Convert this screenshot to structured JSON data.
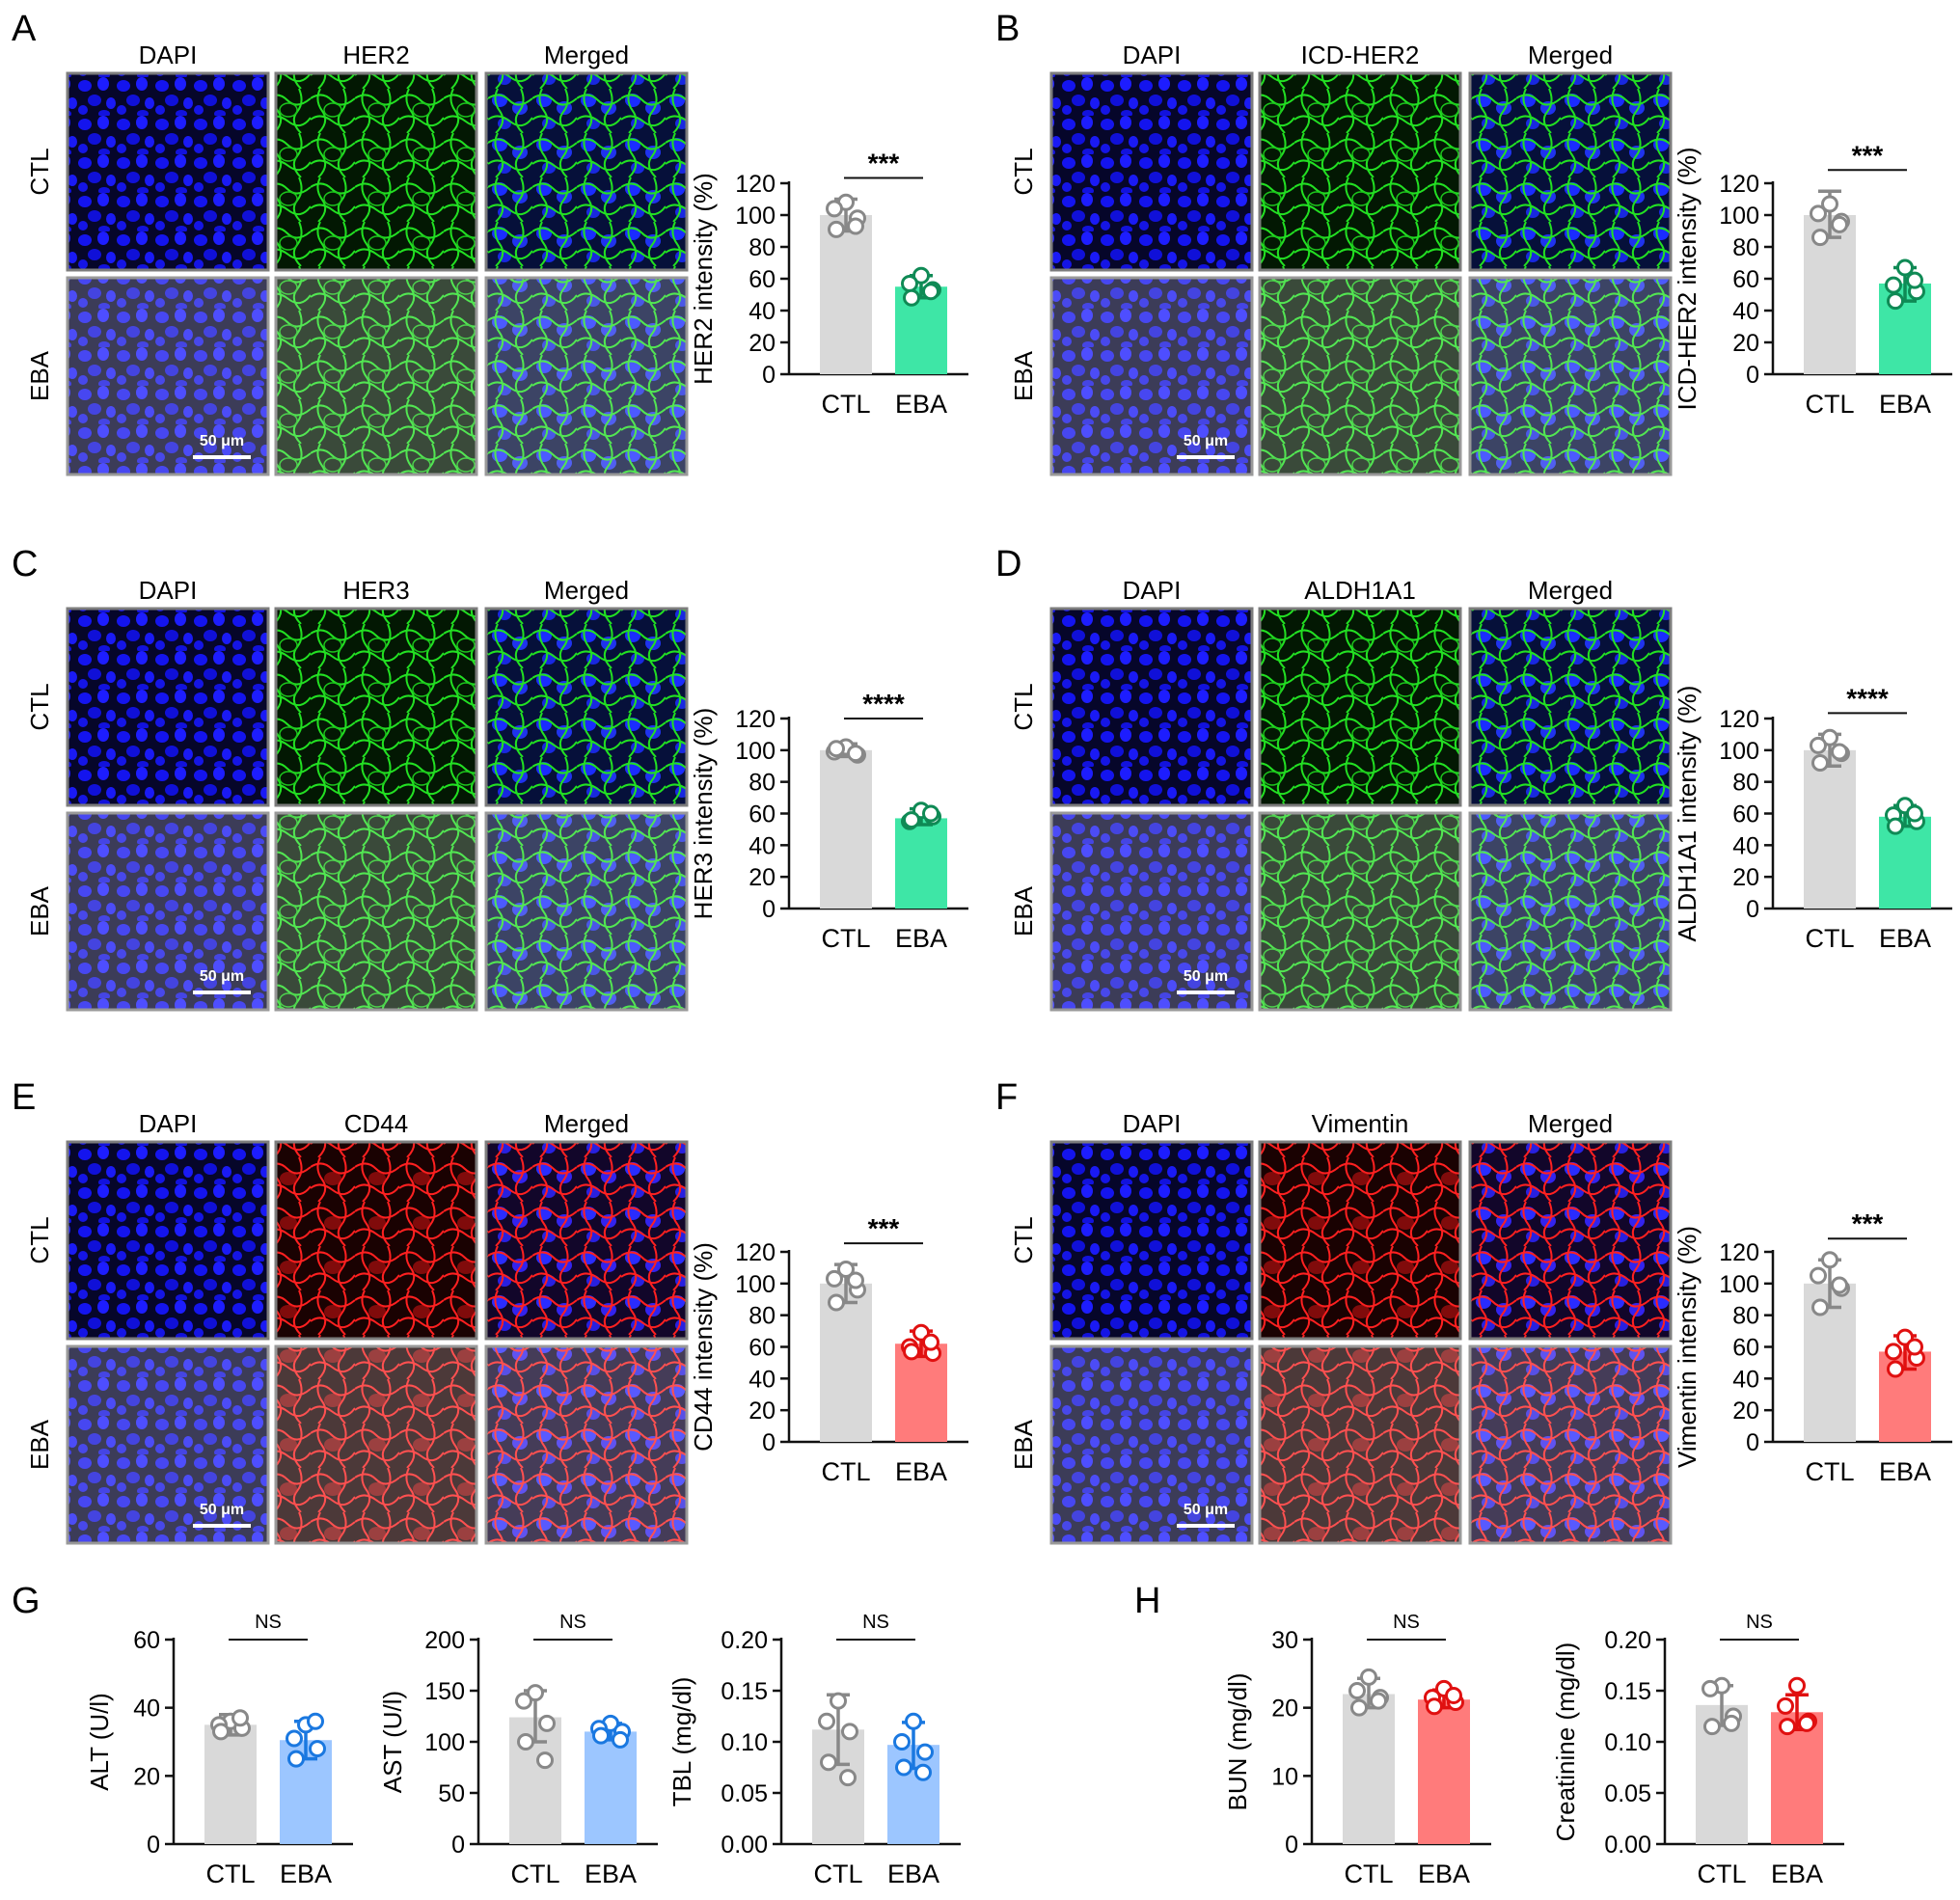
{
  "colors": {
    "ctl_bar": "#d9d9d9",
    "ctl_point": "#888888",
    "eba_green": "#3ee6a6",
    "eba_green_point": "#0f8a55",
    "eba_red": "#ff7b7b",
    "eba_red_point": "#e01010",
    "eba_blue": "#9cc6ff",
    "eba_blue_point": "#1a78e0",
    "dapi": "#1616ff",
    "marker_green": "#1fe61f",
    "marker_red": "#ff1e1e"
  },
  "common": {
    "categories": [
      "CTL",
      "EBA"
    ],
    "row_labels": [
      "CTL",
      "EBA"
    ],
    "scale_bar_label": "50 μm"
  },
  "panels": [
    {
      "letter": "A",
      "col_titles": [
        "DAPI",
        "HER2",
        "Merged"
      ],
      "marker_color": "green",
      "scale_bar": true
    },
    {
      "letter": "B",
      "col_titles": [
        "DAPI",
        "ICD-HER2",
        "Merged"
      ],
      "marker_color": "green",
      "scale_bar": true
    },
    {
      "letter": "C",
      "col_titles": [
        "DAPI",
        "HER3",
        "Merged"
      ],
      "marker_color": "green",
      "scale_bar": true
    },
    {
      "letter": "D",
      "col_titles": [
        "DAPI",
        "ALDH1A1",
        "Merged"
      ],
      "marker_color": "green",
      "scale_bar": true
    },
    {
      "letter": "E",
      "col_titles": [
        "DAPI",
        "CD44",
        "Merged"
      ],
      "marker_color": "red",
      "scale_bar": true
    },
    {
      "letter": "F",
      "col_titles": [
        "DAPI",
        "Vimentin",
        "Merged"
      ],
      "marker_color": "red",
      "scale_bar": true
    }
  ],
  "bottom_letters": {
    "g": "G",
    "h": "H"
  },
  "chart_data": [
    {
      "type": "bar",
      "ylabel": "HER2 intensity (%)",
      "ylim": [
        0,
        120
      ],
      "yticks": [
        "0",
        "20",
        "40",
        "60",
        "80",
        "100",
        "120"
      ],
      "categories": [
        "CTL",
        "EBA"
      ],
      "values": [
        100,
        55
      ],
      "error": [
        [
          90,
          110
        ],
        [
          48,
          62
        ]
      ],
      "points": [
        [
          108,
          104,
          98,
          91,
          93
        ],
        [
          62,
          57,
          53,
          48,
          52
        ]
      ],
      "significance": "***",
      "eba_color": "green"
    },
    {
      "type": "bar",
      "ylabel": "ICD-HER2 intensity (%)",
      "ylim": [
        0,
        120
      ],
      "yticks": [
        "0",
        "20",
        "40",
        "60",
        "80",
        "100",
        "120"
      ],
      "categories": [
        "CTL",
        "EBA"
      ],
      "values": [
        100,
        57
      ],
      "error": [
        [
          86,
          115
        ],
        [
          46,
          67
        ]
      ],
      "points": [
        [
          107,
          101,
          96,
          86,
          94
        ],
        [
          67,
          56,
          52,
          46,
          59
        ]
      ],
      "significance": "***",
      "eba_color": "green"
    },
    {
      "type": "bar",
      "ylabel": "HER3 intensity (%)",
      "ylim": [
        0,
        120
      ],
      "yticks": [
        "0",
        "20",
        "40",
        "60",
        "80",
        "100",
        "120"
      ],
      "categories": [
        "CTL",
        "EBA"
      ],
      "values": [
        100,
        57
      ],
      "error": [
        [
          96,
          104
        ],
        [
          53,
          63
        ]
      ],
      "points": [
        [
          102,
          99,
          97,
          101,
          98
        ],
        [
          62,
          55,
          58,
          56,
          60
        ]
      ],
      "significance": "****",
      "eba_color": "green"
    },
    {
      "type": "bar",
      "ylabel": "ALDH1A1 intensity (%)",
      "ylim": [
        0,
        120
      ],
      "yticks": [
        "0",
        "20",
        "40",
        "60",
        "80",
        "100",
        "120"
      ],
      "categories": [
        "CTL",
        "EBA"
      ],
      "values": [
        100,
        58
      ],
      "error": [
        [
          90,
          110
        ],
        [
          52,
          65
        ]
      ],
      "points": [
        [
          108,
          103,
          98,
          92,
          99
        ],
        [
          65,
          59,
          55,
          52,
          60
        ]
      ],
      "significance": "****",
      "eba_color": "green"
    },
    {
      "type": "bar",
      "ylabel": "CD44 intensity (%)",
      "ylim": [
        0,
        120
      ],
      "yticks": [
        "0",
        "20",
        "40",
        "60",
        "80",
        "100",
        "120"
      ],
      "categories": [
        "CTL",
        "EBA"
      ],
      "values": [
        100,
        62
      ],
      "error": [
        [
          88,
          112
        ],
        [
          54,
          70
        ]
      ],
      "points": [
        [
          109,
          103,
          96,
          88,
          102
        ],
        [
          69,
          60,
          56,
          57,
          63
        ]
      ],
      "significance": "***",
      "eba_color": "red"
    },
    {
      "type": "bar",
      "ylabel": "Vimentin intensity (%)",
      "ylim": [
        0,
        120
      ],
      "yticks": [
        "0",
        "20",
        "40",
        "60",
        "80",
        "100",
        "120"
      ],
      "categories": [
        "CTL",
        "EBA"
      ],
      "values": [
        100,
        57
      ],
      "error": [
        [
          85,
          115
        ],
        [
          46,
          67
        ]
      ],
      "points": [
        [
          115,
          105,
          97,
          85,
          99
        ],
        [
          66,
          57,
          53,
          46,
          60
        ]
      ],
      "significance": "***",
      "eba_color": "red"
    },
    {
      "type": "bar",
      "ylabel": "ALT (U/l)",
      "ylim": [
        0,
        60
      ],
      "yticks": [
        "0",
        "20",
        "40",
        "60"
      ],
      "categories": [
        "CTL",
        "EBA"
      ],
      "values": [
        35,
        30.5
      ],
      "error": [
        [
          32,
          38
        ],
        [
          25,
          36
        ]
      ],
      "points": [
        [
          36,
          35,
          34,
          33,
          37
        ],
        [
          35,
          31,
          28,
          25,
          36
        ]
      ],
      "significance": "NS",
      "eba_color": "blue"
    },
    {
      "type": "bar",
      "ylabel": "AST (U/l)",
      "ylim": [
        0,
        200
      ],
      "yticks": [
        "0",
        "50",
        "100",
        "150",
        "200"
      ],
      "categories": [
        "CTL",
        "EBA"
      ],
      "values": [
        124,
        110
      ],
      "error": [
        [
          100,
          150
        ],
        [
          102,
          118
        ]
      ],
      "points": [
        [
          148,
          140,
          118,
          100,
          82
        ],
        [
          118,
          113,
          110,
          106,
          102
        ]
      ],
      "significance": "NS",
      "eba_color": "blue"
    },
    {
      "type": "bar",
      "ylabel": "TBL (mg/dl)",
      "ylim": [
        0,
        0.2
      ],
      "yticks": [
        "0.00",
        "0.05",
        "0.10",
        "0.15",
        "0.20"
      ],
      "categories": [
        "CTL",
        "EBA"
      ],
      "values": [
        0.112,
        0.097
      ],
      "error": [
        [
          0.078,
          0.146
        ],
        [
          0.074,
          0.119
        ]
      ],
      "points": [
        [
          0.14,
          0.12,
          0.11,
          0.08,
          0.065
        ],
        [
          0.12,
          0.1,
          0.09,
          0.075,
          0.07
        ]
      ],
      "significance": "NS",
      "eba_color": "blue"
    },
    {
      "type": "bar",
      "ylabel": "BUN (mg/dl)",
      "ylim": [
        0,
        30
      ],
      "yticks": [
        "0",
        "10",
        "20",
        "30"
      ],
      "categories": [
        "CTL",
        "EBA"
      ],
      "values": [
        22,
        21.2
      ],
      "error": [
        [
          20,
          24.3
        ],
        [
          20,
          22.6
        ]
      ],
      "points": [
        [
          24.5,
          22.5,
          21.5,
          20,
          21
        ],
        [
          22.8,
          21.5,
          20.8,
          20.2,
          21.8
        ]
      ],
      "significance": "NS",
      "eba_color": "red"
    },
    {
      "type": "bar",
      "ylabel": "Creatinine (mg/dl)",
      "ylim": [
        0,
        0.2
      ],
      "yticks": [
        "0.00",
        "0.05",
        "0.10",
        "0.15",
        "0.20"
      ],
      "categories": [
        "CTL",
        "EBA"
      ],
      "values": [
        0.136,
        0.129
      ],
      "error": [
        [
          0.116,
          0.155
        ],
        [
          0.112,
          0.146
        ]
      ],
      "points": [
        [
          0.155,
          0.152,
          0.125,
          0.115,
          0.118
        ],
        [
          0.155,
          0.135,
          0.12,
          0.115,
          0.118
        ]
      ],
      "significance": "NS",
      "eba_color": "red"
    }
  ]
}
